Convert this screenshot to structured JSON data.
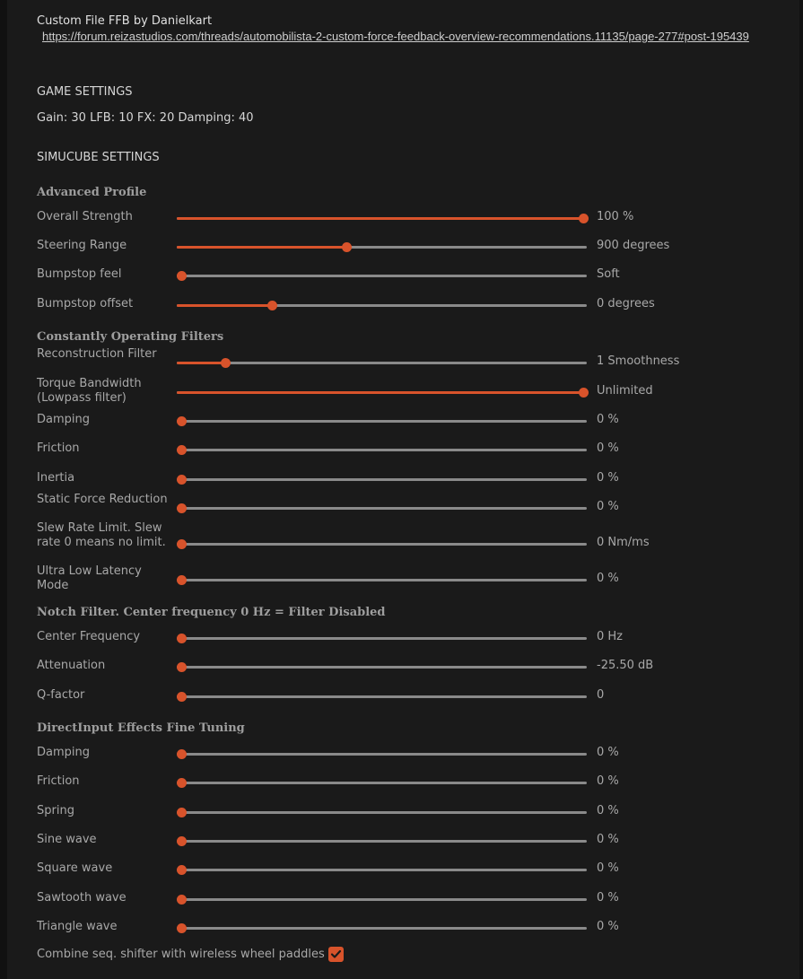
{
  "header": {
    "title": "Custom File FFB by Danielkart",
    "link": "https://forum.reizastudios.com/threads/automobilista-2-custom-force-feedback-overview-recommendations.11135/page-277#post-195439"
  },
  "game_settings": {
    "heading": "GAME SETTINGS",
    "values": "Gain: 30 LFB: 10 FX: 20 Damping: 40"
  },
  "simucube_settings": {
    "heading": "SIMUCUBE SETTINGS"
  },
  "advanced_profile": {
    "heading": "Advanced Profile",
    "rows": [
      {
        "label": "Overall Strength",
        "value": "100 %",
        "level": 1.0
      },
      {
        "label": "Steering Range",
        "value": "900 degrees",
        "level": 0.41
      },
      {
        "label": "Bumpstop feel",
        "value": "Soft",
        "level": 0.0
      },
      {
        "label": "Bumpstop offset",
        "value": "0 degrees",
        "level": 0.225
      }
    ]
  },
  "constant_filters": {
    "heading": "Constantly Operating Filters",
    "rows": [
      {
        "label": "Reconstruction Filter",
        "value": "1 Smoothness",
        "level": 0.11
      },
      {
        "label": "Torque Bandwidth (Lowpass filter)",
        "value": "Unlimited",
        "level": 1.0
      },
      {
        "label": "Damping",
        "value": "0 %",
        "level": 0.0
      },
      {
        "label": "Friction",
        "value": "0 %",
        "level": 0.0
      },
      {
        "label": "Inertia",
        "value": "0 %",
        "level": 0.0
      },
      {
        "label": "Static Force Reduction",
        "value": "0 %",
        "level": 0.0
      },
      {
        "label": "Slew Rate Limit. Slew rate 0 means no limit.",
        "value": "0 Nm/ms",
        "level": 0.0
      },
      {
        "label": "Ultra Low Latency Mode",
        "value": "0 %",
        "level": 0.0
      }
    ]
  },
  "notch_filter": {
    "heading": "Notch Filter. Center frequency 0 Hz = Filter Disabled",
    "rows": [
      {
        "label": "Center Frequency",
        "value": "0 Hz",
        "level": 0.0
      },
      {
        "label": "Attenuation",
        "value": "-25.50 dB",
        "level": 0.0
      },
      {
        "label": "Q-factor",
        "value": "0",
        "level": 0.0
      }
    ]
  },
  "directinput": {
    "heading": "DirectInput Effects Fine Tuning",
    "rows": [
      {
        "label": "Damping",
        "value": "0 %",
        "level": 0.0
      },
      {
        "label": "Friction",
        "value": "0 %",
        "level": 0.0
      },
      {
        "label": "Spring",
        "value": "0 %",
        "level": 0.0
      },
      {
        "label": "Sine wave",
        "value": "0 %",
        "level": 0.0
      },
      {
        "label": "Square wave",
        "value": "0 %",
        "level": 0.0
      },
      {
        "label": "Sawtooth wave",
        "value": "0 %",
        "level": 0.0
      },
      {
        "label": "Triangle wave",
        "value": "0 %",
        "level": 0.0
      }
    ]
  },
  "combine_shifter": {
    "label": "Combine seq. shifter with wireless wheel paddles",
    "checked": true
  },
  "colors": {
    "accent": "#d8532b",
    "track": "#8a8a8a",
    "background": "#1a1a1a"
  }
}
